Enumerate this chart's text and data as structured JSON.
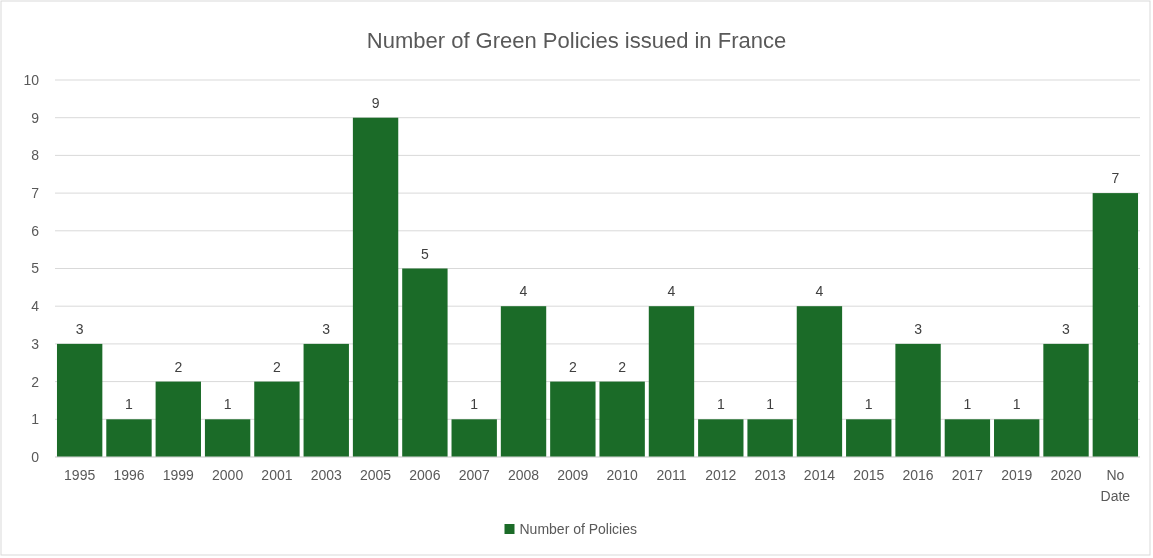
{
  "chart_data": {
    "type": "bar",
    "title": "Number of Green Policies issued in France",
    "categories": [
      "1995",
      "1996",
      "1999",
      "2000",
      "2001",
      "2003",
      "2005",
      "2006",
      "2007",
      "2008",
      "2009",
      "2010",
      "2011",
      "2012",
      "2013",
      "2014",
      "2015",
      "2016",
      "2017",
      "2019",
      "2020",
      "No Date"
    ],
    "series": [
      {
        "name": "Number of Policies",
        "color": "#1b6b28",
        "values": [
          3,
          1,
          2,
          1,
          2,
          3,
          9,
          5,
          1,
          4,
          2,
          2,
          4,
          1,
          1,
          4,
          1,
          3,
          1,
          1,
          3,
          7
        ]
      }
    ],
    "ylim": [
      0,
      10
    ],
    "yticks": [
      0,
      1,
      2,
      3,
      4,
      5,
      6,
      7,
      8,
      9,
      10
    ],
    "grid": "y",
    "legend": "bottom",
    "data_labels": true
  }
}
